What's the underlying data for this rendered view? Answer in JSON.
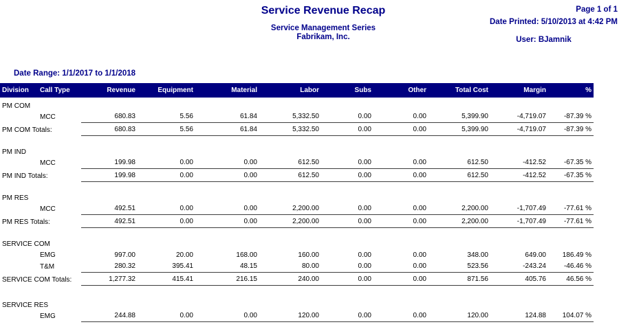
{
  "header": {
    "title": "Service Revenue Recap",
    "subtitle1": "Service Management Series",
    "subtitle2": "Fabrikam, Inc.",
    "page_info": "Page 1 of 1",
    "date_printed": "Date Printed: 5/10/2013 at 4:42 PM",
    "user": "User: BJamnik"
  },
  "filters": {
    "date_range": "Date Range: 1/1/2017 to 1/1/2018"
  },
  "colors": {
    "accent_text": "#00008B",
    "header_bar": "#000080",
    "body_text": "#000000",
    "rule_line": "#3d3d3d"
  },
  "table": {
    "columns": [
      "Division",
      "Call Type",
      "Revenue",
      "Equipment",
      "Material",
      "Labor",
      "Subs",
      "Other",
      "Total Cost",
      "Margin",
      "%"
    ],
    "sections": [
      {
        "division": "PM COM",
        "rows": [
          {
            "call_type": "MCC",
            "underline": true,
            "values": [
              "680.83",
              "5.56",
              "61.84",
              "5,332.50",
              "0.00",
              "0.00",
              "5,399.90",
              "-4,719.07",
              "-87.39 %"
            ]
          }
        ],
        "totals": {
          "label": "PM COM Totals:",
          "values": [
            "680.83",
            "5.56",
            "61.84",
            "5,332.50",
            "0.00",
            "0.00",
            "5,399.90",
            "-4,719.07",
            "-87.39 %"
          ]
        }
      },
      {
        "division": "PM IND",
        "rows": [
          {
            "call_type": "MCC",
            "underline": true,
            "values": [
              "199.98",
              "0.00",
              "0.00",
              "612.50",
              "0.00",
              "0.00",
              "612.50",
              "-412.52",
              "-67.35 %"
            ]
          }
        ],
        "totals": {
          "label": "PM IND Totals:",
          "values": [
            "199.98",
            "0.00",
            "0.00",
            "612.50",
            "0.00",
            "0.00",
            "612.50",
            "-412.52",
            "-67.35 %"
          ]
        }
      },
      {
        "division": "PM RES",
        "rows": [
          {
            "call_type": "MCC",
            "underline": true,
            "values": [
              "492.51",
              "0.00",
              "0.00",
              "2,200.00",
              "0.00",
              "0.00",
              "2,200.00",
              "-1,707.49",
              "-77.61 %"
            ]
          }
        ],
        "totals": {
          "label": "PM RES Totals:",
          "values": [
            "492.51",
            "0.00",
            "0.00",
            "2,200.00",
            "0.00",
            "0.00",
            "2,200.00",
            "-1,707.49",
            "-77.61 %"
          ]
        }
      },
      {
        "division": "SERVICE COM",
        "rows": [
          {
            "call_type": "EMG",
            "underline": false,
            "values": [
              "997.00",
              "20.00",
              "168.00",
              "160.00",
              "0.00",
              "0.00",
              "348.00",
              "649.00",
              "186.49 %"
            ]
          },
          {
            "call_type": "T&M",
            "underline": true,
            "values": [
              "280.32",
              "395.41",
              "48.15",
              "80.00",
              "0.00",
              "0.00",
              "523.56",
              "-243.24",
              "-46.46 %"
            ]
          }
        ],
        "totals": {
          "label": "SERVICE COM Totals:",
          "values": [
            "1,277.32",
            "415.41",
            "216.15",
            "240.00",
            "0.00",
            "0.00",
            "871.56",
            "405.76",
            "46.56 %"
          ]
        }
      },
      {
        "division": "SERVICE RES",
        "rows": [
          {
            "call_type": "EMG",
            "underline": true,
            "values": [
              "244.88",
              "0.00",
              "0.00",
              "120.00",
              "0.00",
              "0.00",
              "120.00",
              "124.88",
              "104.07 %"
            ]
          }
        ],
        "totals": null
      }
    ]
  }
}
